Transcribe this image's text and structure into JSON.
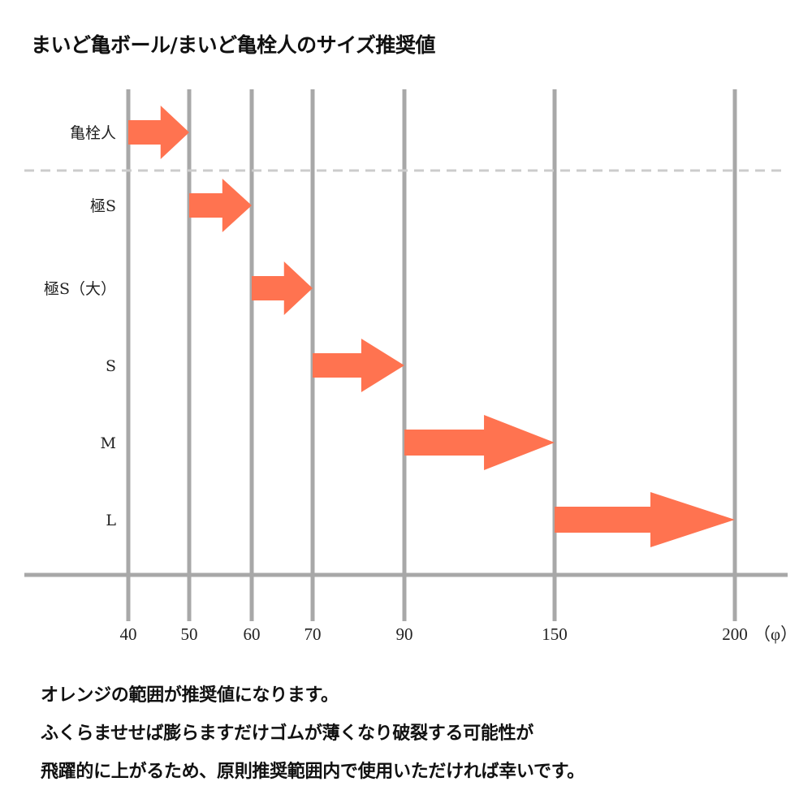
{
  "title": "まいど亀ボール/まいど亀栓人のサイズ推奨値",
  "colors": {
    "arrow": "#ff7350",
    "gridline": "#a8a8a8",
    "divider": "#cccccc"
  },
  "chart_data": {
    "type": "range-arrows",
    "x_ticks": [
      "40",
      "50",
      "60",
      "70",
      "90",
      "150",
      "200"
    ],
    "unit_label": "（φ）",
    "rows": [
      {
        "label": "亀栓人",
        "from": "40",
        "to": "50"
      },
      {
        "label": "極S",
        "from": "50",
        "to": "60"
      },
      {
        "label": "極S（大）",
        "from": "60",
        "to": "70"
      },
      {
        "label": "S",
        "from": "70",
        "to": "90"
      },
      {
        "label": "M",
        "from": "90",
        "to": "150"
      },
      {
        "label": "L",
        "from": "150",
        "to": "200"
      }
    ]
  },
  "notes": [
    "オレンジの範囲が推奨値になります。",
    "ふくらませせば膨らますだけゴムが薄くなり破裂する可能性が",
    "飛躍的に上がるため、原則推奨範囲内で使用いただければ幸いです。"
  ]
}
